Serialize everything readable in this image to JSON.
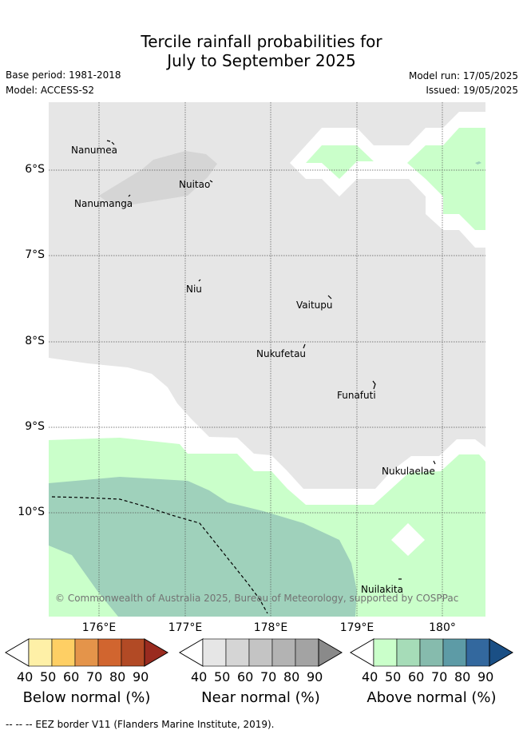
{
  "title_line1": "Tercile rainfall probabilities for",
  "title_line2": "July to September 2025",
  "base_period": "Base period: 1981-2018",
  "model": "Model: ACCESS-S2",
  "model_run": "Model run: 17/05/2025",
  "issued": "Issued: 19/05/2025",
  "latitude_labels": [
    "6°S",
    "7°S",
    "8°S",
    "9°S",
    "10°S"
  ],
  "longitude_labels": [
    "176°E",
    "177°E",
    "178°E",
    "179°E",
    "180°"
  ],
  "places": {
    "nanumea": "Nanumea",
    "nuitao": "Nuitao",
    "nanumanga": "Nanumanga",
    "niu": "Niu",
    "vaitupu": "Vaitupu",
    "nukufetau": "Nukufetau",
    "funafuti": "Funafuti",
    "nukulaelae": "Nukulaelae",
    "nuilakita": "Nuilakita"
  },
  "copyright": "© Commonwealth of Australia 2025, Bureau of Meteorology, supported by COSPPac",
  "colorbars": {
    "ticks": [
      "40",
      "50",
      "60",
      "70",
      "80",
      "90"
    ],
    "below": {
      "label": "Below normal (%)",
      "colors": [
        "#fef0a7",
        "#fecf64",
        "#e4944a",
        "#d1652f",
        "#b24a25",
        "#9a2b1f"
      ]
    },
    "near": {
      "label": "Near normal (%)",
      "colors": [
        "#e6e6e6",
        "#d5d5d5",
        "#c4c4c4",
        "#b3b3b3",
        "#a3a3a3",
        "#8a8a8a"
      ]
    },
    "above": {
      "label": "Above normal (%)",
      "colors": [
        "#caffca",
        "#a6dcb8",
        "#86bbad",
        "#5d9ba6",
        "#33689e",
        "#1a4f85"
      ]
    }
  },
  "footer": "-- -- -- EEZ border V11 (Flanders Marine Institute, 2019)."
}
